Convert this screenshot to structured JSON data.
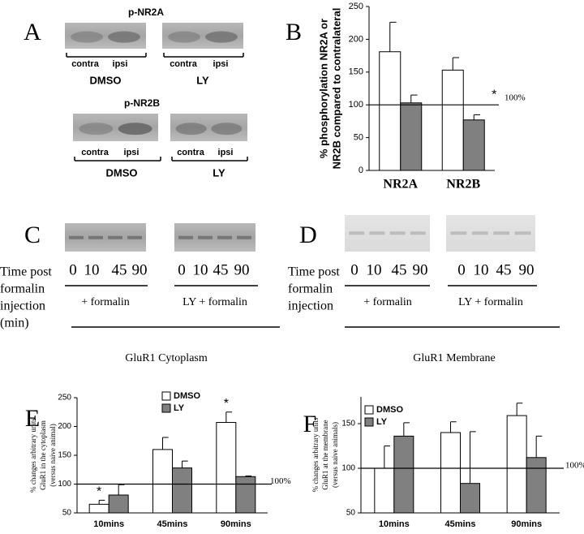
{
  "blots": [
    {
      "letter": "A",
      "groups": [
        {
          "title": "p-NR2A",
          "lanes": [
            "contra",
            "ipsi",
            "contra",
            "ipsi"
          ],
          "conditions": [
            "DMSO",
            "LY"
          ]
        },
        {
          "title": "p-NR2B",
          "lanes": [
            "contra",
            "ipsi",
            "contra",
            "ipsi"
          ],
          "conditions": [
            "DMSO",
            "LY"
          ]
        }
      ]
    },
    {
      "letter": "C",
      "row_label": [
        "Time post",
        "formalin",
        "injection",
        "(min)"
      ],
      "lanes": [
        0,
        10,
        45,
        90,
        0,
        10,
        45,
        90
      ],
      "conditions": [
        "+ formalin",
        "LY + formalin"
      ],
      "caption": "GluR1 Cytoplasm"
    },
    {
      "letter": "D",
      "row_label": [
        "Time post",
        "formalin",
        "injection"
      ],
      "lanes": [
        0,
        10,
        45,
        90,
        0,
        10,
        45,
        90
      ],
      "conditions": [
        "+ formalin",
        "LY + formalin"
      ],
      "caption": "GluR1 Membrane"
    }
  ],
  "chart_data": [
    {
      "type": "bar",
      "letter": "B",
      "ylabel": [
        "% phosphorylation NR2A or",
        "NR2B compared to contralateral"
      ],
      "categories": [
        "NR2A",
        "NR2B"
      ],
      "series": [
        {
          "color": "#ffffff",
          "values": [
            181,
            153
          ],
          "errors": [
            45,
            19
          ],
          "stars": [
            null,
            null
          ]
        },
        {
          "color": "#808080",
          "values": [
            103,
            77
          ],
          "errors": [
            12,
            8
          ],
          "stars": [
            null,
            "*"
          ]
        }
      ],
      "ylim": [
        0,
        250
      ],
      "yticks": [
        0,
        50,
        100,
        150,
        200,
        250
      ],
      "reference": {
        "value": 100,
        "label": "100%"
      }
    },
    {
      "type": "bar",
      "letter": "E",
      "ylabel": [
        "% changes arbitrary units",
        "GluR1 in the cytoplasm",
        "(versus naive animal)"
      ],
      "categories": [
        "10mins",
        "45mins",
        "90mins"
      ],
      "series": [
        {
          "name": "DMSO",
          "color": "#ffffff",
          "values": [
            65,
            160,
            207
          ],
          "errors": [
            7,
            21,
            18
          ],
          "stars": [
            "*",
            null,
            "*"
          ]
        },
        {
          "name": "LY",
          "color": "#808080",
          "values": [
            81,
            128,
            113
          ],
          "errors": [
            18,
            12,
            1
          ],
          "stars": [
            null,
            null,
            null
          ]
        }
      ],
      "ylim": [
        50,
        250
      ],
      "yticks": [
        50,
        100,
        150,
        200,
        250
      ],
      "reference": {
        "value": 100,
        "label": "100%"
      }
    },
    {
      "type": "bar",
      "letter": "F",
      "ylabel": [
        "% changes arbitrary units",
        "GluR1 at the membrane",
        "(versus naive animals)"
      ],
      "categories": [
        "10mins",
        "45mins",
        "90mins"
      ],
      "series": [
        {
          "name": "DMSO",
          "color": "#ffffff",
          "values": [
            100,
            140,
            159
          ],
          "errors": [
            25,
            12,
            14
          ],
          "stars": [
            null,
            null,
            null
          ]
        },
        {
          "name": "LY",
          "color": "#808080",
          "values": [
            136,
            83,
            112
          ],
          "errors": [
            15,
            58,
            24
          ],
          "stars": [
            null,
            null,
            null
          ]
        }
      ],
      "ylim": [
        50,
        180
      ],
      "yticks": [
        50,
        100,
        150
      ],
      "reference": {
        "value": 100,
        "label": "100%"
      }
    }
  ]
}
